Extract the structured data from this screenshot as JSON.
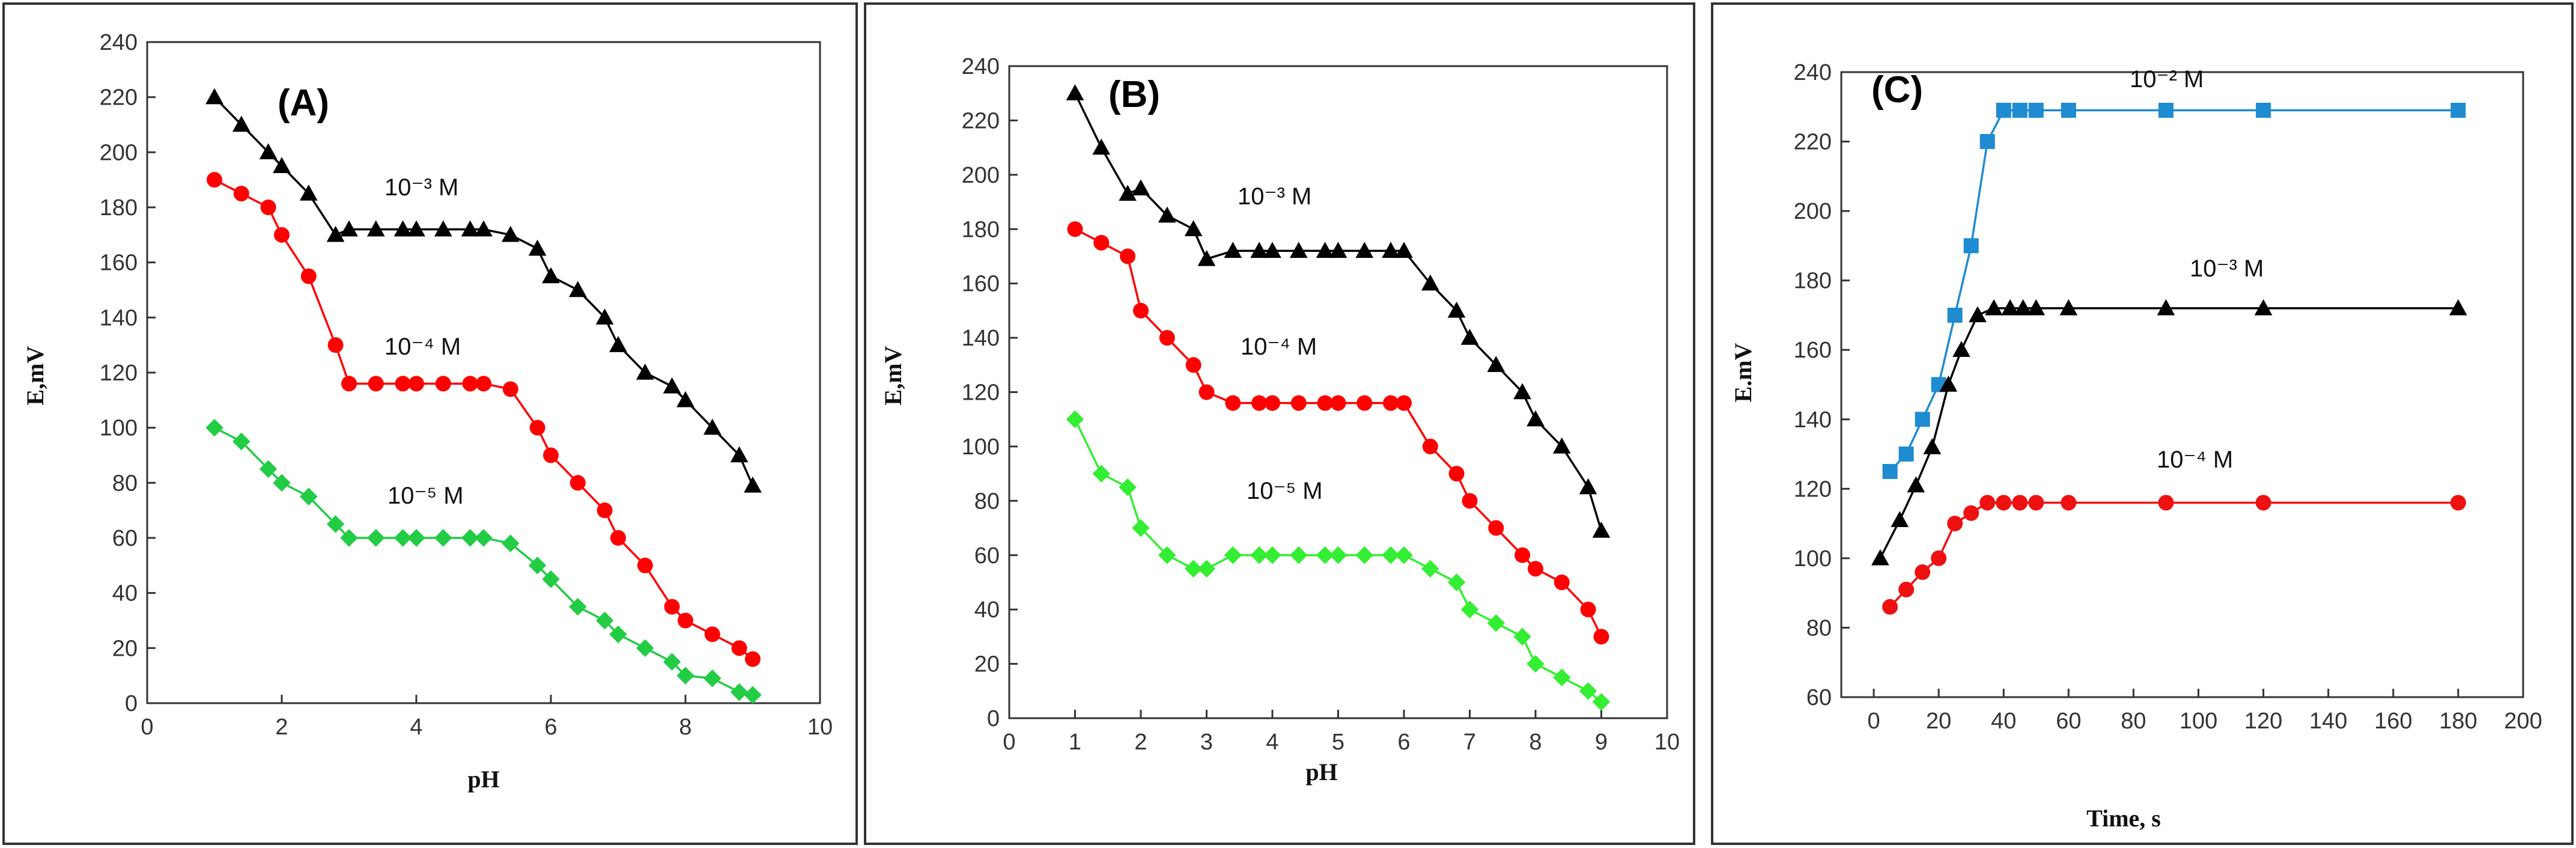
{
  "chart_data": [
    {
      "type": "line",
      "panel_label": "(A)",
      "xlabel": "pH",
      "ylabel": "E,mV",
      "xlim": [
        0,
        10
      ],
      "ylim": [
        0,
        240
      ],
      "xticks": [
        "0",
        "2",
        "4",
        "6",
        "8",
        "10"
      ],
      "yticks": [
        "0",
        "20",
        "40",
        "60",
        "80",
        "100",
        "120",
        "140",
        "160",
        "180",
        "200",
        "220",
        "240"
      ],
      "series": [
        {
          "name": "10⁻³ M",
          "label": "10⁻³ M",
          "color": "#000000",
          "marker": "triangle",
          "x": [
            1,
            1.4,
            1.8,
            2.0,
            2.4,
            2.8,
            3.0,
            3.4,
            3.8,
            4.0,
            4.4,
            4.8,
            5.0,
            5.4,
            5.8,
            6.0,
            6.4,
            6.8,
            7.0,
            7.4,
            7.8,
            8.0,
            8.4,
            8.8,
            9.0
          ],
          "y": [
            220,
            210,
            200,
            195,
            185,
            170,
            172,
            172,
            172,
            172,
            172,
            172,
            172,
            170,
            165,
            155,
            150,
            140,
            130,
            120,
            115,
            110,
            100,
            90,
            79
          ]
        },
        {
          "name": "10⁻⁴ M",
          "label": "10⁻⁴ M",
          "color": "#ff0000",
          "marker": "circle",
          "x": [
            1,
            1.4,
            1.8,
            2.0,
            2.4,
            2.8,
            3.0,
            3.4,
            3.8,
            4.0,
            4.4,
            4.8,
            5.0,
            5.4,
            5.8,
            6.0,
            6.4,
            6.8,
            7.0,
            7.4,
            7.8,
            8.0,
            8.4,
            8.8,
            9.0
          ],
          "y": [
            190,
            185,
            180,
            170,
            155,
            130,
            116,
            116,
            116,
            116,
            116,
            116,
            116,
            114,
            100,
            90,
            80,
            70,
            60,
            50,
            35,
            30,
            25,
            20,
            16
          ]
        },
        {
          "name": "10⁻⁵ M",
          "label": "10⁻⁵ M",
          "color": "#22cc44",
          "marker": "diamond",
          "x": [
            1,
            1.4,
            1.8,
            2.0,
            2.4,
            2.8,
            3.0,
            3.4,
            3.8,
            4.0,
            4.4,
            4.8,
            5.0,
            5.4,
            5.8,
            6.0,
            6.4,
            6.8,
            7.0,
            7.4,
            7.8,
            8.0,
            8.4,
            8.8,
            9.0
          ],
          "y": [
            100,
            95,
            85,
            80,
            75,
            65,
            60,
            60,
            60,
            60,
            60,
            60,
            60,
            58,
            50,
            45,
            35,
            30,
            25,
            20,
            15,
            10,
            9,
            4,
            3
          ]
        }
      ]
    },
    {
      "type": "line",
      "panel_label": "(B)",
      "xlabel": "pH",
      "ylabel": "E,mV",
      "xlim": [
        0,
        10
      ],
      "ylim": [
        0,
        240
      ],
      "xticks": [
        "0",
        "1",
        "2",
        "3",
        "4",
        "5",
        "6",
        "7",
        "8",
        "9",
        "10"
      ],
      "yticks": [
        "0",
        "20",
        "40",
        "60",
        "80",
        "100",
        "120",
        "140",
        "160",
        "180",
        "200",
        "220",
        "240"
      ],
      "series": [
        {
          "name": "10⁻³ M",
          "label": "10⁻³ M",
          "color": "#000000",
          "marker": "triangle",
          "x": [
            1,
            1.4,
            1.8,
            2.0,
            2.4,
            2.8,
            3.0,
            3.4,
            3.8,
            4.0,
            4.4,
            4.8,
            5.0,
            5.4,
            5.8,
            6.0,
            6.4,
            6.8,
            7.0,
            7.4,
            7.8,
            8.0,
            8.4,
            8.8,
            9.0
          ],
          "y": [
            230,
            210,
            193,
            195,
            185,
            180,
            169,
            172,
            172,
            172,
            172,
            172,
            172,
            172,
            172,
            172,
            160,
            150,
            140,
            130,
            120,
            110,
            100,
            85,
            69
          ]
        },
        {
          "name": "10⁻⁴ M",
          "label": "10⁻⁴ M",
          "color": "#ff0000",
          "marker": "circle",
          "x": [
            1,
            1.4,
            1.8,
            2.0,
            2.4,
            2.8,
            3.0,
            3.4,
            3.8,
            4.0,
            4.4,
            4.8,
            5.0,
            5.4,
            5.8,
            6.0,
            6.4,
            6.8,
            7.0,
            7.4,
            7.8,
            8.0,
            8.4,
            8.8,
            9.0
          ],
          "y": [
            180,
            175,
            170,
            150,
            140,
            130,
            120,
            116,
            116,
            116,
            116,
            116,
            116,
            116,
            116,
            116,
            100,
            90,
            80,
            70,
            60,
            55,
            50,
            40,
            30
          ]
        },
        {
          "name": "10⁻⁵ M",
          "label": "10⁻⁵ M",
          "color": "#33ee33",
          "marker": "diamond",
          "x": [
            1,
            1.4,
            1.8,
            2.0,
            2.4,
            2.8,
            3.0,
            3.4,
            3.8,
            4.0,
            4.4,
            4.8,
            5.0,
            5.4,
            5.8,
            6.0,
            6.4,
            6.8,
            7.0,
            7.4,
            7.8,
            8.0,
            8.4,
            8.8,
            9.0
          ],
          "y": [
            110,
            90,
            85,
            70,
            60,
            55,
            55,
            60,
            60,
            60,
            60,
            60,
            60,
            60,
            60,
            60,
            55,
            50,
            40,
            35,
            30,
            20,
            15,
            10,
            6
          ]
        }
      ]
    },
    {
      "type": "line",
      "panel_label": "(C)",
      "xlabel": "Time, s",
      "ylabel": "E.mV",
      "xlim": [
        -10,
        200
      ],
      "ylim": [
        60,
        240
      ],
      "xticks": [
        "0",
        "20",
        "40",
        "60",
        "80",
        "100",
        "120",
        "140",
        "160",
        "180",
        "200"
      ],
      "yticks": [
        "60",
        "80",
        "100",
        "120",
        "140",
        "160",
        "180",
        "200",
        "220",
        "240"
      ],
      "series": [
        {
          "name": "10⁻² M",
          "label": "10⁻² M",
          "color": "#1f8bd0",
          "marker": "square",
          "x": [
            5,
            10,
            15,
            20,
            25,
            30,
            35,
            40,
            45,
            50,
            60,
            90,
            120,
            180
          ],
          "y": [
            125,
            130,
            140,
            150,
            170,
            190,
            220,
            229,
            229,
            229,
            229,
            229,
            229,
            229
          ]
        },
        {
          "name": "10⁻³ M",
          "label": "10⁻³ M",
          "color": "#000000",
          "marker": "triangle",
          "x": [
            2,
            8,
            13,
            18,
            23,
            27,
            32,
            37,
            42,
            46,
            50,
            60,
            90,
            120,
            180
          ],
          "y": [
            100,
            111,
            121,
            132,
            150,
            160,
            170,
            172,
            172,
            172,
            172,
            172,
            172,
            172,
            172
          ]
        },
        {
          "name": "10⁻⁴ M",
          "label": "10⁻⁴ M",
          "color": "#ee1111",
          "marker": "circle",
          "x": [
            5,
            10,
            15,
            20,
            25,
            30,
            35,
            40,
            45,
            50,
            60,
            90,
            120,
            180
          ],
          "y": [
            86,
            91,
            96,
            100,
            110,
            113,
            116,
            116,
            116,
            116,
            116,
            116,
            116,
            116
          ]
        }
      ]
    }
  ]
}
